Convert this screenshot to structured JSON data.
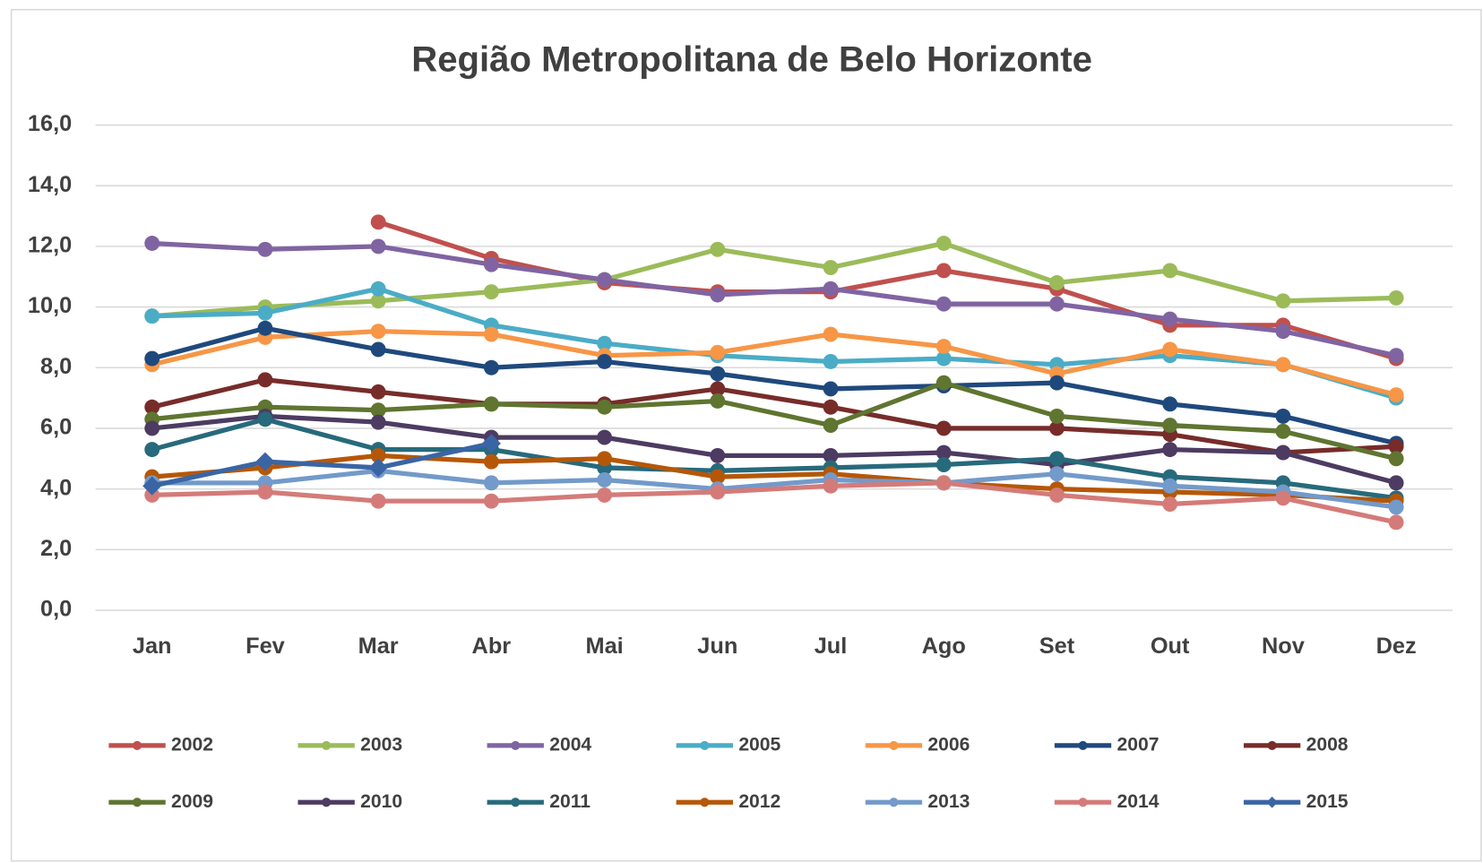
{
  "chart_data": {
    "type": "line",
    "title": "Região Metropolitana de Belo Horizonte",
    "categories": [
      "Jan",
      "Fev",
      "Mar",
      "Abr",
      "Mai",
      "Jun",
      "Jul",
      "Ago",
      "Set",
      "Out",
      "Nov",
      "Dez"
    ],
    "ylim": [
      0,
      16
    ],
    "yticks": [
      {
        "value": 0,
        "label": "0,0"
      },
      {
        "value": 2,
        "label": "2,0"
      },
      {
        "value": 4,
        "label": "4,0"
      },
      {
        "value": 6,
        "label": "6,0"
      },
      {
        "value": 8,
        "label": "8,0"
      },
      {
        "value": 10,
        "label": "10,0"
      },
      {
        "value": 12,
        "label": "12,0"
      },
      {
        "value": 14,
        "label": "14,0"
      },
      {
        "value": 16,
        "label": "16,0"
      }
    ],
    "grid": true,
    "legend": "bottom",
    "series": [
      {
        "name": "2002",
        "color": "#c0504d",
        "values": [
          null,
          null,
          12.8,
          11.6,
          10.8,
          10.5,
          10.5,
          11.2,
          10.6,
          9.4,
          9.4,
          8.3
        ]
      },
      {
        "name": "2003",
        "color": "#9bbb59",
        "values": [
          9.7,
          10.0,
          10.2,
          10.5,
          10.9,
          11.9,
          11.3,
          12.1,
          10.8,
          11.2,
          10.2,
          10.3
        ]
      },
      {
        "name": "2004",
        "color": "#8064a2",
        "values": [
          12.1,
          11.9,
          12.0,
          11.4,
          10.9,
          10.4,
          10.6,
          10.1,
          10.1,
          9.6,
          9.2,
          8.4
        ]
      },
      {
        "name": "2005",
        "color": "#4bacc6",
        "values": [
          9.7,
          9.8,
          10.6,
          9.4,
          8.8,
          8.4,
          8.2,
          8.3,
          8.1,
          8.4,
          8.1,
          7.0
        ]
      },
      {
        "name": "2006",
        "color": "#f79646",
        "values": [
          8.1,
          9.0,
          9.2,
          9.1,
          8.4,
          8.5,
          9.1,
          8.7,
          7.8,
          8.6,
          8.1,
          7.1
        ]
      },
      {
        "name": "2007",
        "color": "#1f497d",
        "values": [
          8.3,
          9.3,
          8.6,
          8.0,
          8.2,
          7.8,
          7.3,
          7.4,
          7.5,
          6.8,
          6.4,
          5.5
        ]
      },
      {
        "name": "2008",
        "color": "#772c2a",
        "values": [
          6.7,
          7.6,
          7.2,
          6.8,
          6.8,
          7.3,
          6.7,
          6.0,
          6.0,
          5.8,
          5.2,
          5.4
        ]
      },
      {
        "name": "2009",
        "color": "#5f7530",
        "values": [
          6.3,
          6.7,
          6.6,
          6.8,
          6.7,
          6.9,
          6.1,
          7.5,
          6.4,
          6.1,
          5.9,
          5.0
        ]
      },
      {
        "name": "2010",
        "color": "#4d3b62",
        "values": [
          6.0,
          6.4,
          6.2,
          5.7,
          5.7,
          5.1,
          5.1,
          5.2,
          4.8,
          5.3,
          5.2,
          4.2
        ]
      },
      {
        "name": "2011",
        "color": "#276a7c",
        "values": [
          5.3,
          6.3,
          5.3,
          5.3,
          4.7,
          4.6,
          4.7,
          4.8,
          5.0,
          4.4,
          4.2,
          3.7
        ]
      },
      {
        "name": "2012",
        "color": "#b65708",
        "values": [
          4.4,
          4.7,
          5.1,
          4.9,
          5.0,
          4.4,
          4.5,
          4.2,
          4.0,
          3.9,
          3.8,
          3.6
        ]
      },
      {
        "name": "2013",
        "color": "#729aca",
        "values": [
          4.2,
          4.2,
          4.6,
          4.2,
          4.3,
          4.0,
          4.3,
          4.2,
          4.5,
          4.1,
          3.9,
          3.4
        ]
      },
      {
        "name": "2014",
        "color": "#d47b79",
        "values": [
          3.8,
          3.9,
          3.6,
          3.6,
          3.8,
          3.9,
          4.1,
          4.2,
          3.8,
          3.5,
          3.7,
          2.9
        ]
      },
      {
        "name": "2015",
        "color": "#3a65a5",
        "marker": "diamond",
        "values": [
          4.1,
          4.9,
          4.7,
          5.5,
          null,
          null,
          null,
          null,
          null,
          null,
          null,
          null
        ]
      }
    ]
  }
}
